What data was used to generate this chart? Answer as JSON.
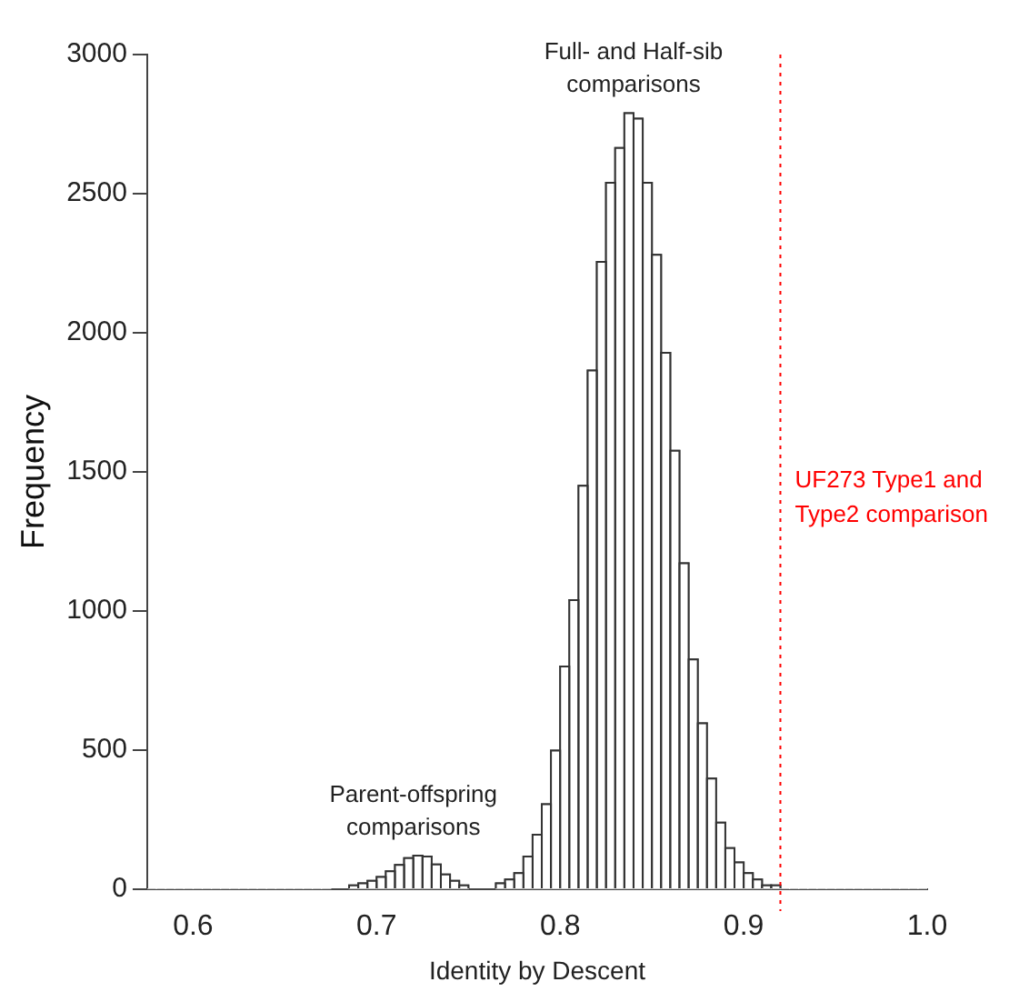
{
  "chart_data": {
    "type": "histogram",
    "xlabel": "Identity by Descent",
    "ylabel": "Frequency",
    "bins": [
      0.575,
      0.58,
      0.585,
      0.59,
      0.595,
      0.6,
      0.605,
      0.61,
      0.615,
      0.62,
      0.625,
      0.63,
      0.635,
      0.64,
      0.645,
      0.65,
      0.655,
      0.66,
      0.665,
      0.67,
      0.675,
      0.68,
      0.685,
      0.69,
      0.695,
      0.7,
      0.705,
      0.71,
      0.715,
      0.72,
      0.725,
      0.73,
      0.735,
      0.74,
      0.745,
      0.75,
      0.755,
      0.76,
      0.765,
      0.77,
      0.775,
      0.78,
      0.785,
      0.79,
      0.795,
      0.8,
      0.805,
      0.81,
      0.815,
      0.82,
      0.825,
      0.83,
      0.835,
      0.84,
      0.845,
      0.85,
      0.855,
      0.86,
      0.865,
      0.87,
      0.875,
      0.88,
      0.885,
      0.89,
      0.895,
      0.9,
      0.905,
      0.91,
      0.915,
      0.92,
      0.925,
      0.93,
      0.935,
      0.94,
      0.945,
      0.95,
      0.955,
      0.96,
      0.965,
      0.97,
      0.975,
      0.98,
      0.985,
      0.99,
      0.995,
      1.0
    ],
    "values": [
      0,
      0,
      0,
      0,
      0,
      0,
      0,
      0,
      0,
      0,
      0,
      0,
      0,
      0,
      0,
      0,
      0,
      0,
      0,
      0,
      null,
      null,
      11,
      18,
      27,
      41,
      61,
      84,
      109,
      118,
      114,
      86,
      50,
      27,
      11,
      null,
      null,
      null,
      18,
      32,
      55,
      114,
      193,
      302,
      495,
      797,
      1036,
      1447,
      1861,
      2252,
      2536,
      2661,
      2786,
      2766,
      2536,
      2277,
      1925,
      1573,
      1168,
      823,
      593,
      395,
      236,
      145,
      93,
      55,
      32,
      11,
      11,
      0,
      0,
      0,
      0,
      0,
      0,
      0,
      0,
      0,
      0,
      0,
      0,
      0,
      0,
      0,
      0
    ],
    "color": "#ffffff",
    "xlim": [
      0.575,
      1.0
    ],
    "xticks": [
      {
        "value": 0.6,
        "label": "0.6"
      },
      {
        "value": 0.7,
        "label": "0.7"
      },
      {
        "value": 0.8,
        "label": "0.8"
      },
      {
        "value": 0.9,
        "label": "0.9"
      },
      {
        "value": 1.0,
        "label": "1.0"
      }
    ],
    "ylim": [
      0,
      3000
    ],
    "yticks": [
      0,
      500,
      1000,
      1500,
      2000,
      2500,
      3000
    ],
    "grid": false,
    "legend": false,
    "ref_lines": [
      {
        "axis": "x",
        "value": 0.92,
        "label": "UF273 Type1 and Type2 comparison",
        "color": "#ff0000",
        "line_style": "dotted"
      }
    ],
    "annotations": [
      {
        "text": "Full- and Half-sib\ncomparisons",
        "x": 0.84,
        "y": 2786
      },
      {
        "text": "Parent-offspring\ncomparisons",
        "x": 0.72,
        "y": 118
      }
    ]
  }
}
